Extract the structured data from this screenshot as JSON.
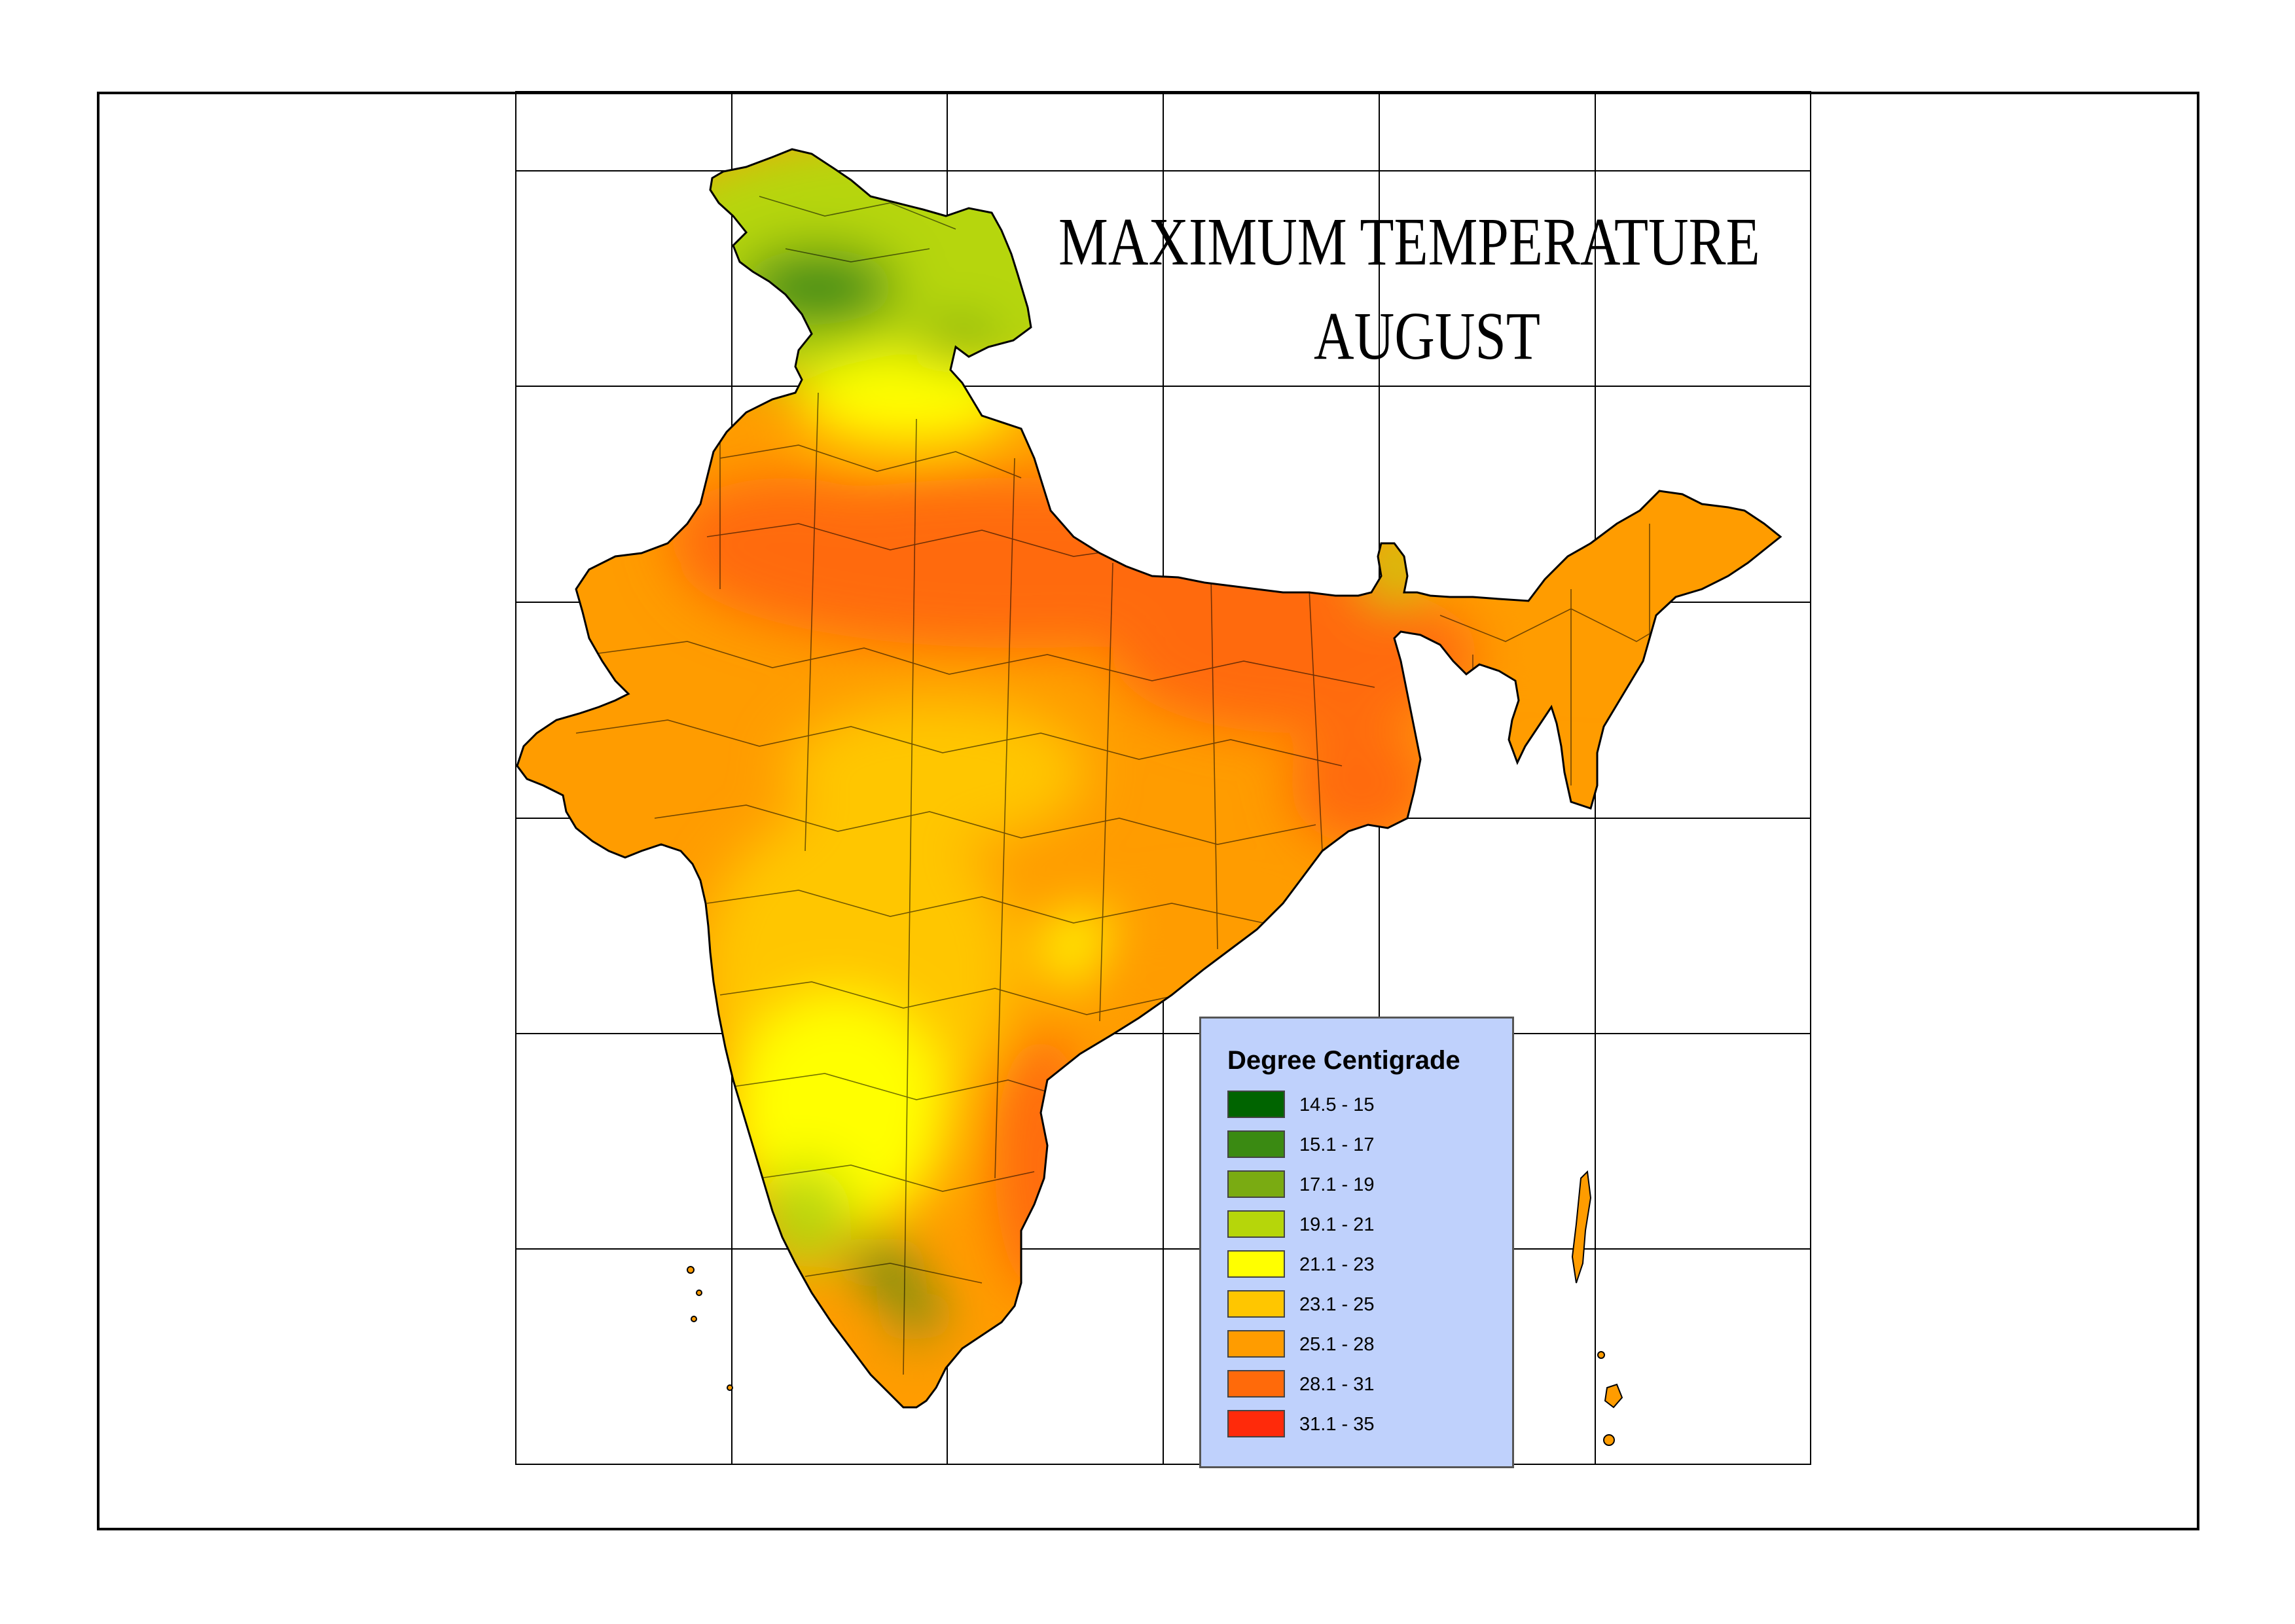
{
  "title": {
    "line1": "MAXIMUM TEMPERATURE",
    "line2": "AUGUST"
  },
  "legend": {
    "title": "Degree Centigrade",
    "items": [
      {
        "label": "14.5 - 15",
        "color": "#006400"
      },
      {
        "label": "15.1 - 17",
        "color": "#3a8a12"
      },
      {
        "label": "17.1 - 19",
        "color": "#7aab12"
      },
      {
        "label": "19.1 - 21",
        "color": "#b6d60a"
      },
      {
        "label": "21.1 - 23",
        "color": "#ffff00"
      },
      {
        "label": "23.1 - 25",
        "color": "#ffc600"
      },
      {
        "label": "25.1 - 28",
        "color": "#ff9c00"
      },
      {
        "label": "28.1 - 31",
        "color": "#ff6a0a"
      },
      {
        "label": "31.1 - 35",
        "color": "#ff2a0a"
      }
    ]
  },
  "map": {
    "region": "India",
    "grid": true,
    "boundaries": "district"
  }
}
